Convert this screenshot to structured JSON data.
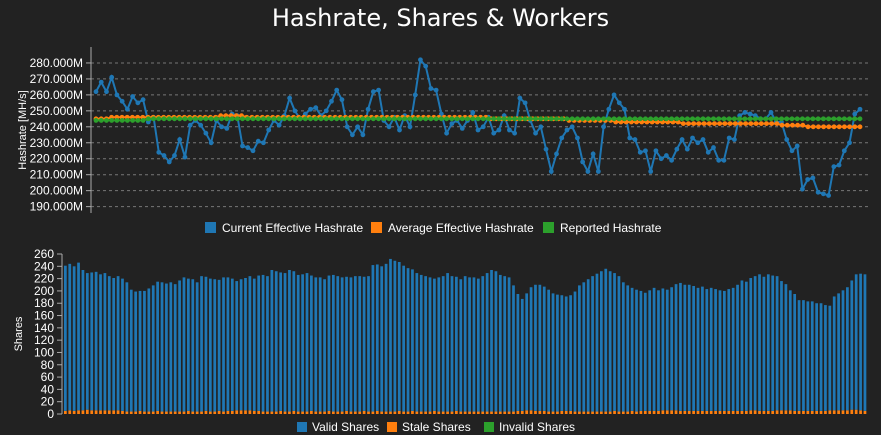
{
  "title": "Hashrate, Shares & Workers",
  "colors": {
    "background": "#222222",
    "grid": "#777777",
    "axis": "#aaaaaa",
    "current": "#1f77b4",
    "average": "#ff7f0e",
    "reported": "#2ca02c"
  },
  "chart_data": [
    {
      "type": "line",
      "ylabel": "Hashrate [MH/s]",
      "ylim": [
        186,
        290
      ],
      "yticks": [
        190,
        200,
        210,
        220,
        230,
        240,
        250,
        260,
        270,
        280
      ],
      "ytick_labels": [
        "190.000M",
        "200.000M",
        "210.000M",
        "220.000M",
        "230.000M",
        "240.000M",
        "250.000M",
        "260.000M",
        "270.000M",
        "280.000M"
      ],
      "grid": true,
      "legend_position": "bottom",
      "series": [
        {
          "name": "Current Effective Hashrate",
          "color": "#1f77b4",
          "values": [
            262,
            268,
            262,
            271,
            260,
            256,
            251,
            259,
            255,
            257,
            243,
            246,
            224,
            222,
            218,
            222,
            232,
            221,
            241,
            244,
            241,
            236,
            230,
            244,
            240,
            239,
            248,
            247,
            228,
            227,
            225,
            231,
            230,
            238,
            244,
            241,
            247,
            258,
            250,
            245,
            248,
            251,
            252,
            247,
            250,
            256,
            263,
            257,
            240,
            235,
            240,
            235,
            251,
            262,
            263,
            244,
            240,
            246,
            238,
            247,
            240,
            260,
            282,
            278,
            264,
            263,
            248,
            236,
            242,
            244,
            239,
            244,
            249,
            238,
            240,
            246,
            236,
            238,
            247,
            238,
            236,
            258,
            255,
            244,
            236,
            240,
            226,
            212,
            223,
            233,
            238,
            240,
            233,
            218,
            212,
            223,
            212,
            240,
            251,
            260,
            255,
            251,
            233,
            232,
            224,
            225,
            212,
            225,
            220,
            222,
            219,
            226,
            232,
            226,
            233,
            230,
            232,
            224,
            227,
            219,
            219,
            233,
            232,
            247,
            249,
            248,
            247,
            245,
            245,
            249,
            243,
            243,
            232,
            225,
            228,
            201,
            207,
            208,
            199,
            198,
            197,
            215,
            216,
            225,
            230,
            248,
            251
          ]
        },
        {
          "name": "Average Effective Hashrate",
          "color": "#ff7f0e",
          "values": [
            245,
            245,
            245,
            246,
            246,
            246,
            246,
            246,
            246,
            246,
            246,
            246,
            246,
            246,
            246,
            246,
            246,
            246,
            246,
            246,
            246,
            246,
            246,
            246,
            247,
            247,
            247,
            247,
            247,
            246,
            246,
            246,
            246,
            246,
            246,
            246,
            246,
            246,
            246,
            246,
            246,
            246,
            246,
            246,
            246,
            246,
            246,
            246,
            246,
            246,
            246,
            246,
            246,
            246,
            246,
            246,
            246,
            246,
            246,
            246,
            246,
            246,
            246,
            246,
            246,
            246,
            246,
            246,
            246,
            246,
            246,
            246,
            246,
            246,
            246,
            246,
            245,
            245,
            245,
            245,
            245,
            245,
            245,
            245,
            245,
            245,
            245,
            245,
            245,
            245,
            245,
            244,
            244,
            244,
            244,
            244,
            244,
            244,
            244,
            244,
            243,
            243,
            243,
            243,
            243,
            243,
            243,
            243,
            243,
            243,
            243,
            243,
            243,
            242,
            242,
            242,
            242,
            242,
            242,
            242,
            242,
            242,
            242,
            242,
            242,
            242,
            242,
            242,
            242,
            242,
            242,
            242,
            241,
            241,
            241,
            241,
            241,
            240,
            240,
            240,
            240,
            240,
            240,
            240,
            240,
            240,
            240,
            240
          ]
        },
        {
          "name": "Reported Hashrate",
          "color": "#2ca02c",
          "values": [
            244,
            244,
            244,
            244,
            244,
            244,
            244,
            244,
            244,
            244,
            245,
            245,
            245,
            245,
            245,
            245,
            245,
            245,
            245,
            245,
            245,
            245,
            245,
            245,
            245,
            245,
            245,
            245,
            245,
            245,
            245,
            245,
            245,
            245,
            245,
            245,
            245,
            245,
            245,
            245,
            245,
            245,
            245,
            245,
            245,
            245,
            245,
            245,
            245,
            245,
            245,
            245,
            245,
            245,
            245,
            245,
            245,
            245,
            245,
            245,
            245,
            245,
            245,
            245,
            245,
            245,
            245,
            245,
            245,
            245,
            245,
            245,
            245,
            245,
            245,
            245,
            245,
            245,
            245,
            245,
            245,
            245,
            245,
            245,
            245,
            245,
            245,
            245,
            245,
            245,
            245,
            245,
            245,
            245,
            245,
            245,
            245,
            245,
            245,
            245,
            245,
            245,
            245,
            245,
            245,
            245,
            245,
            245,
            245,
            245,
            245,
            245,
            245,
            245,
            245,
            245,
            245,
            245,
            245,
            245,
            245,
            245,
            245,
            245,
            245,
            245,
            245,
            245,
            245,
            245,
            245,
            245,
            245,
            245,
            245,
            245,
            245,
            245,
            245,
            245,
            245,
            245,
            245,
            245,
            245,
            245,
            245
          ]
        }
      ]
    },
    {
      "type": "bar",
      "ylabel": "Shares",
      "ylim": [
        0,
        260
      ],
      "yticks": [
        0,
        20,
        40,
        60,
        80,
        100,
        120,
        140,
        160,
        180,
        200,
        220,
        240,
        260
      ],
      "ytick_labels": [
        "0",
        "20",
        "40",
        "60",
        "80",
        "100",
        "120",
        "140",
        "160",
        "180",
        "200",
        "220",
        "240",
        "260"
      ],
      "grid": false,
      "legend_position": "bottom",
      "series": [
        {
          "name": "Valid Shares",
          "color": "#1f77b4",
          "values": [
            236,
            238,
            235,
            240,
            228,
            222,
            224,
            225,
            221,
            223,
            218,
            215,
            218,
            215,
            210,
            198,
            195,
            195,
            196,
            200,
            205,
            210,
            210,
            208,
            210,
            207,
            213,
            218,
            215,
            215,
            210,
            220,
            218,
            216,
            215,
            213,
            218,
            217,
            215,
            210,
            213,
            215,
            218,
            215,
            220,
            222,
            220,
            230,
            228,
            225,
            225,
            230,
            227,
            222,
            223,
            225,
            220,
            218,
            218,
            215,
            220,
            222,
            220,
            218,
            218,
            218,
            220,
            220,
            218,
            220,
            238,
            238,
            236,
            240,
            248,
            245,
            242,
            237,
            233,
            230,
            225,
            222,
            220,
            218,
            215,
            218,
            220,
            225,
            220,
            218,
            215,
            220,
            218,
            218,
            216,
            220,
            225,
            230,
            228,
            222,
            220,
            218,
            205,
            190,
            182,
            190,
            200,
            205,
            205,
            202,
            198,
            192,
            190,
            188,
            186,
            188,
            195,
            205,
            210,
            215,
            220,
            224,
            228,
            232,
            228,
            224,
            220,
            210,
            205,
            200,
            198,
            195,
            192,
            196,
            200,
            196,
            198,
            196,
            200,
            205,
            208,
            205,
            205,
            203,
            200,
            202,
            198,
            200,
            198,
            196,
            195,
            198,
            200,
            205,
            212,
            210,
            215,
            218,
            222,
            218,
            222,
            220,
            218,
            210,
            205,
            195,
            190,
            180,
            180,
            178,
            178,
            175,
            175,
            172,
            170,
            185,
            190,
            195,
            200,
            210,
            220,
            222,
            222
          ]
        },
        {
          "name": "Stale Shares",
          "color": "#ff7f0e",
          "values": [
            5,
            6,
            5,
            6,
            6,
            7,
            6,
            6,
            6,
            6,
            6,
            6,
            6,
            5,
            4,
            4,
            4,
            5,
            4,
            4,
            4,
            5,
            4,
            4,
            4,
            4,
            4,
            4,
            5,
            4,
            4,
            4,
            5,
            4,
            4,
            5,
            4,
            5,
            5,
            6,
            6,
            6,
            6,
            5,
            5,
            4,
            4,
            4,
            4,
            5,
            4,
            4,
            5,
            4,
            4,
            4,
            5,
            4,
            4,
            4,
            5,
            4,
            4,
            4,
            5,
            4,
            4,
            4,
            5,
            4,
            4,
            5,
            4,
            4,
            4,
            4,
            5,
            4,
            4,
            5,
            4,
            4,
            4,
            4,
            5,
            4,
            4,
            4,
            4,
            5,
            4,
            4,
            4,
            4,
            4,
            4,
            4,
            4,
            4,
            4,
            4,
            4,
            4,
            5,
            5,
            6,
            6,
            5,
            5,
            5,
            4,
            4,
            4,
            5,
            5,
            5,
            4,
            4,
            4,
            4,
            4,
            4,
            4,
            4,
            4,
            5,
            4,
            4,
            4,
            5,
            4,
            5,
            5,
            5,
            5,
            5,
            6,
            6,
            6,
            6,
            5,
            5,
            5,
            5,
            5,
            5,
            5,
            5,
            5,
            5,
            5,
            5,
            5,
            5,
            5,
            5,
            6,
            6,
            5,
            5,
            5,
            5,
            6,
            6,
            6,
            6,
            5,
            5,
            5,
            5,
            5,
            5,
            5,
            5,
            6,
            6,
            6,
            6,
            6,
            7,
            7,
            6,
            5,
            5
          ]
        },
        {
          "name": "Invalid Shares",
          "color": "#2ca02c",
          "values": []
        }
      ]
    }
  ]
}
